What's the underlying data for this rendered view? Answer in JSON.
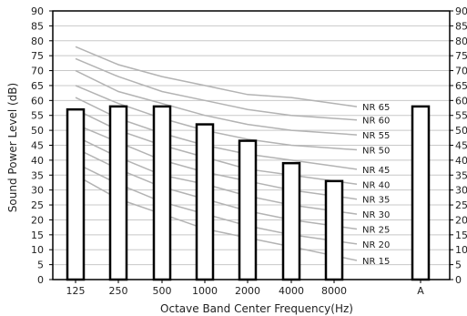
{
  "chart_data": {
    "type": "bar",
    "title": "",
    "xlabel": "Octave Band Center Frequency(Hz)",
    "ylabel": "Sound Power Level (dB)",
    "ylim": [
      0,
      90
    ],
    "y_ticks": [
      "0",
      "5",
      "10",
      "15",
      "20",
      "25",
      "30",
      "35",
      "40",
      "45",
      "50",
      "55",
      "60",
      "65",
      "70",
      "75",
      "80",
      "85",
      "90"
    ],
    "categories": [
      "125",
      "250",
      "500",
      "1000",
      "2000",
      "4000",
      "8000",
      "A"
    ],
    "values": [
      57,
      58,
      58,
      52,
      46.5,
      39,
      33,
      58
    ],
    "grid": "horizontal",
    "secondary_y_axis": true,
    "nr_curves": [
      {
        "name": "NR 65",
        "values": [
          78,
          72,
          68,
          65,
          62,
          61,
          59
        ]
      },
      {
        "name": "NR 60",
        "values": [
          74,
          68,
          63,
          60,
          57,
          55,
          54
        ]
      },
      {
        "name": "NR 55",
        "values": [
          70,
          63,
          59,
          55,
          52,
          50,
          49
        ]
      },
      {
        "name": "NR 50",
        "values": [
          65,
          59,
          54,
          50,
          47,
          45,
          44
        ]
      },
      {
        "name": "NR 45",
        "values": [
          61,
          54,
          49,
          45,
          42,
          40,
          38
        ]
      },
      {
        "name": "NR 40",
        "values": [
          57,
          50,
          45,
          41,
          37,
          35,
          33
        ]
      },
      {
        "name": "NR 35",
        "values": [
          52,
          46,
          40,
          36,
          33,
          30,
          28
        ]
      },
      {
        "name": "NR 30",
        "values": [
          48,
          41,
          35,
          32,
          28,
          25,
          23
        ]
      },
      {
        "name": "NR 25",
        "values": [
          44,
          37,
          31,
          27,
          23,
          20,
          18
        ]
      },
      {
        "name": "NR 20",
        "values": [
          39,
          32,
          26,
          22,
          18,
          15,
          13
        ]
      },
      {
        "name": "NR 15",
        "values": [
          35,
          27,
          22,
          17,
          14,
          11,
          8
        ]
      }
    ],
    "colors": {
      "bar_fill": "#ffffff",
      "bar_stroke": "#000000",
      "curve": "#b3b3b3",
      "grid": "#c8c8c8",
      "axis": "#000000"
    }
  }
}
